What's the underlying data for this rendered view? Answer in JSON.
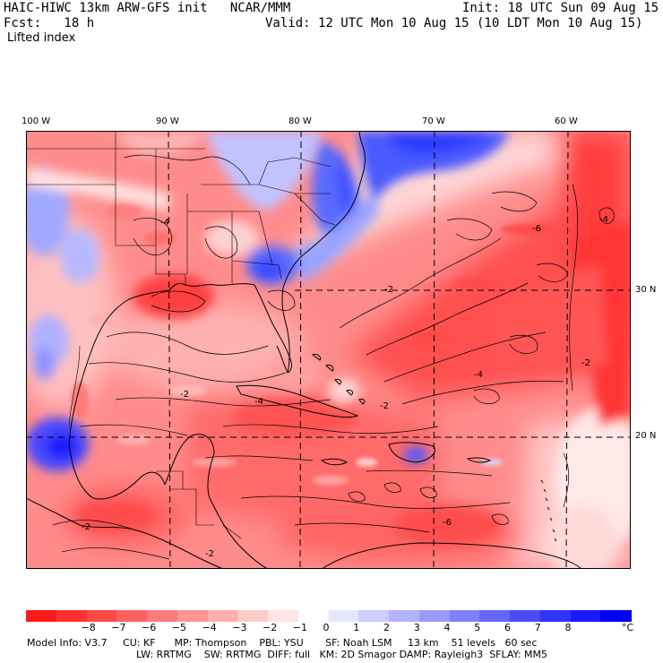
{
  "header": {
    "model_title": "HAIC-HIWC 13km ARW-GFS init   NCAR/MMM",
    "init": "Init: 18 UTC Sun 09 Aug 15",
    "fcst": "Fcst:   18 h",
    "valid": "Valid: 12 UTC Mon 10 Aug 15 (10 LDT Mon 10 Aug 15)",
    "field": "Lifted index"
  },
  "map": {
    "lon_labels": [
      "100 W",
      "90 W",
      "80 W",
      "70 W",
      "60 W"
    ],
    "lat_labels": [
      "30 N",
      "20 N"
    ],
    "contour_labels": [
      "-4",
      "-2",
      "-2",
      "-4",
      "-2",
      "-2",
      "-6",
      "-4",
      "-2",
      "-4",
      "-6",
      "-2"
    ]
  },
  "colorbar": {
    "colors": [
      "#ff1a1a",
      "#ff3030",
      "#ff4848",
      "#ff6060",
      "#ff7a7a",
      "#ff9494",
      "#ffaeae",
      "#ffcaca",
      "#ffe4e4",
      "#ffffff",
      "#e6e6ff",
      "#ccccff",
      "#b3b3ff",
      "#9a9aff",
      "#8080ff",
      "#6666ff",
      "#4c4cff",
      "#3333ff",
      "#1a1aff",
      "#0000f0"
    ],
    "labels": [
      "−8",
      "−7",
      "−6",
      "−5",
      "−4",
      "−3",
      "−2",
      "−1",
      "0",
      "1",
      "2",
      "3",
      "4",
      "5",
      "6",
      "7",
      "8",
      "°C"
    ]
  },
  "footer": {
    "line1": "Model Info: V3.7     CU: KF      MP: Thompson    PBL: YSU       SF: Noah LSM     13 km    51 levels   60 sec",
    "line2": "LW: RRTMG    SW: RRTMG  DIFF: full   KM: 2D Smagor DAMP: Rayleigh3  SFLAY: MM5"
  }
}
